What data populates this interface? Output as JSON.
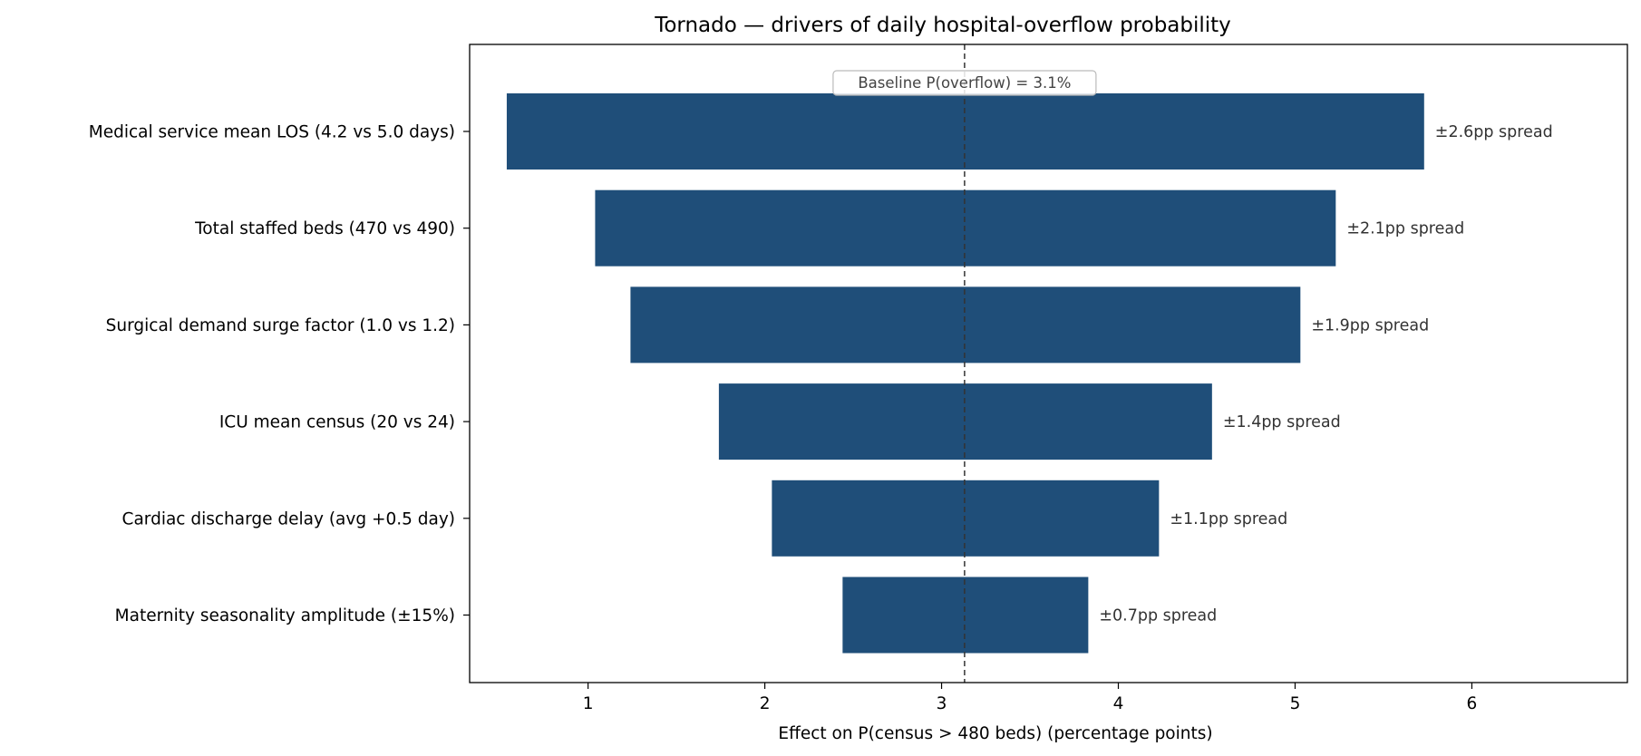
{
  "chart_data": {
    "type": "bar",
    "orientation": "horizontal",
    "variant": "tornado",
    "title": "Tornado — drivers of daily hospital-overflow probability",
    "xlabel": "Effect on P(census > 480 beds)  (percentage points)",
    "ylabel": "",
    "xlim": [
      0.33,
      6.88
    ],
    "xticks": [
      1,
      2,
      3,
      4,
      5,
      6
    ],
    "grid": false,
    "baseline": {
      "value": 3.13,
      "label": "Baseline P(overflow) = 3.1%"
    },
    "bar_color": "#1f4e79",
    "categories": [
      "Medical service mean LOS (4.2 vs 5.0 days)",
      "Total staffed beds (470 vs 490)",
      "Surgical demand surge factor (1.0 vs 1.2)",
      "ICU mean census (20 vs 24)",
      "Cardiac discharge delay (avg +0.5 day)",
      "Maternity seasonality amplitude (±15%)"
    ],
    "low": [
      0.54,
      1.04,
      1.24,
      1.74,
      2.04,
      2.44
    ],
    "high": [
      5.73,
      5.23,
      5.03,
      4.53,
      4.23,
      3.83
    ],
    "data_labels": [
      "±2.6pp spread",
      "±2.1pp spread",
      "±1.9pp spread",
      "±1.4pp spread",
      "±1.1pp spread",
      "±0.7pp spread"
    ]
  }
}
